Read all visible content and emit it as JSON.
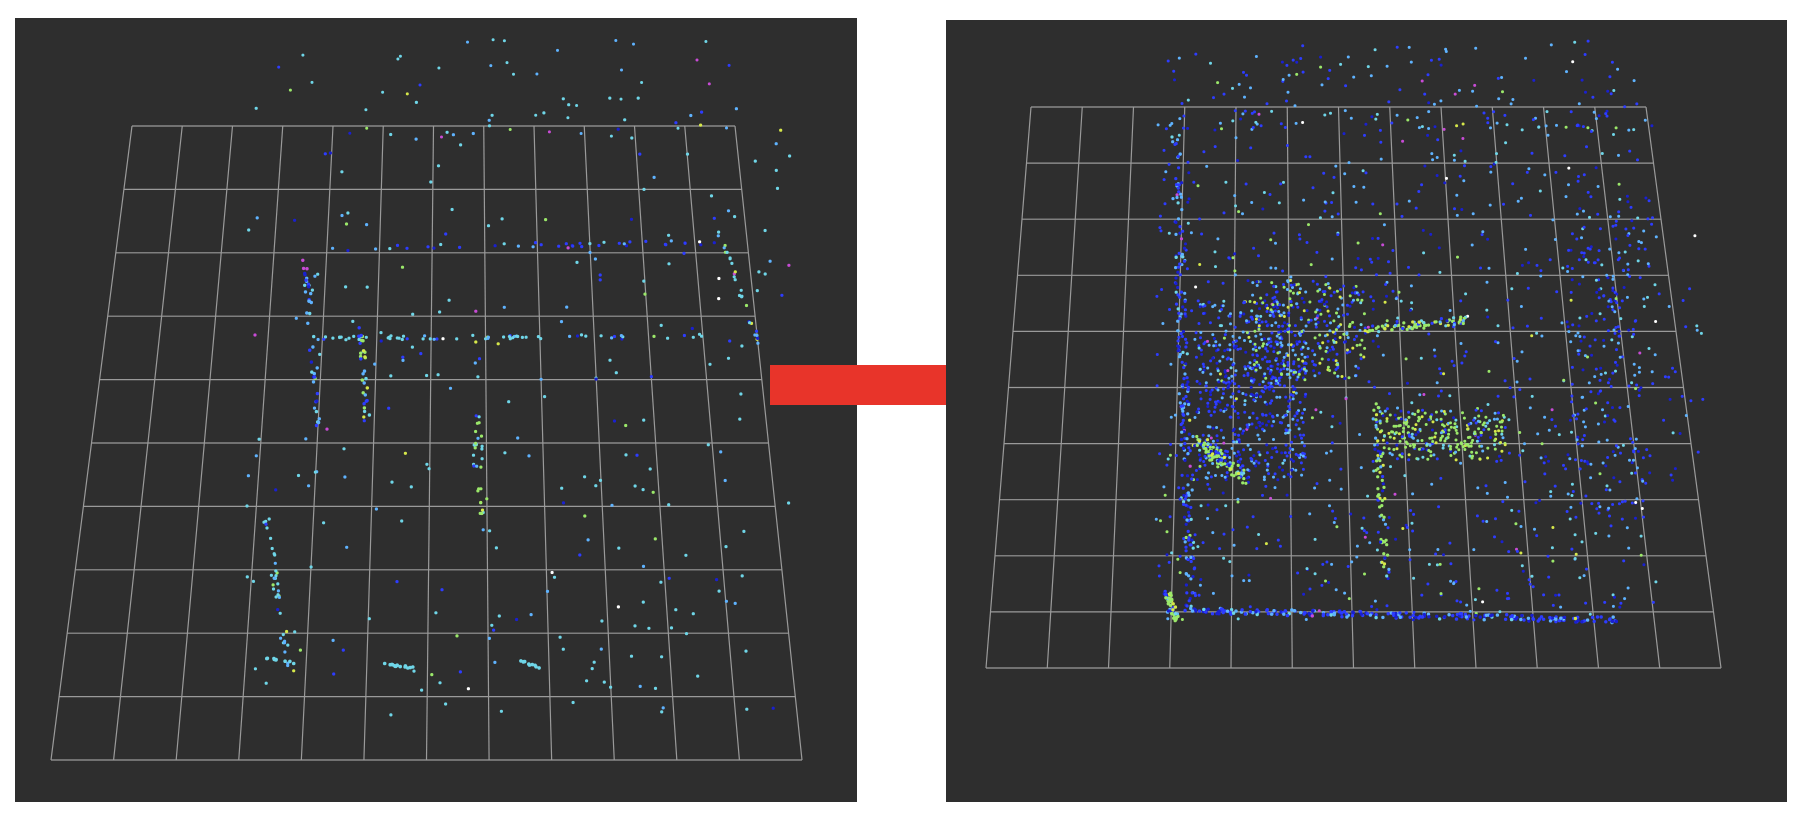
{
  "colors": {
    "background": "#2e2e2e",
    "grid": "#9a9a9a",
    "arrow": "#e8342a",
    "points": [
      "#6fd6e8",
      "#5fb3ff",
      "#2d3cff",
      "#1a20d0",
      "#9be86a",
      "#d6e84a",
      "#c84bd6",
      "#ffffff"
    ]
  },
  "viewports": {
    "left": {
      "label": "",
      "point_density": "sparse"
    },
    "right": {
      "label": "",
      "point_density": "dense"
    }
  },
  "arrow": {
    "direction": "right",
    "icon": "arrow-right-icon"
  }
}
